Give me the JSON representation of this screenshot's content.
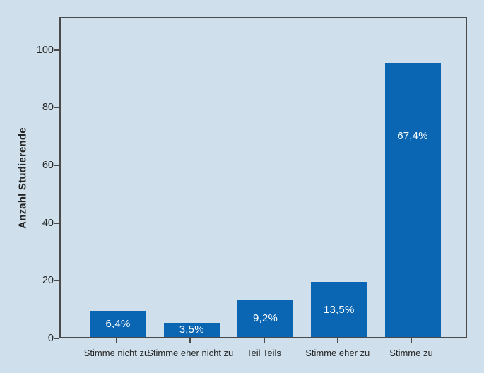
{
  "chart_data": {
    "type": "bar",
    "title": "",
    "xlabel": "",
    "ylabel": "Anzahl Studierende",
    "categories": [
      "Stimme nicht zu",
      "Stimme eher nicht zu",
      "Teil Teils",
      "Stimme eher zu",
      "Stimme zu"
    ],
    "values": [
      9,
      5,
      13,
      19,
      95
    ],
    "bar_labels": [
      "6,4%",
      "3,5%",
      "9,2%",
      "13,5%",
      "67,4%"
    ],
    "y_ticks": [
      0,
      20,
      40,
      60,
      80,
      100
    ],
    "ylim": [
      0,
      111
    ],
    "grid": false,
    "legend": "none",
    "colors": {
      "background": "#cfe0ec",
      "bar": "#0a66b2",
      "frame": "#4a4a4a",
      "axis_text": "#262626",
      "bar_label_text": "#ffffff"
    }
  }
}
